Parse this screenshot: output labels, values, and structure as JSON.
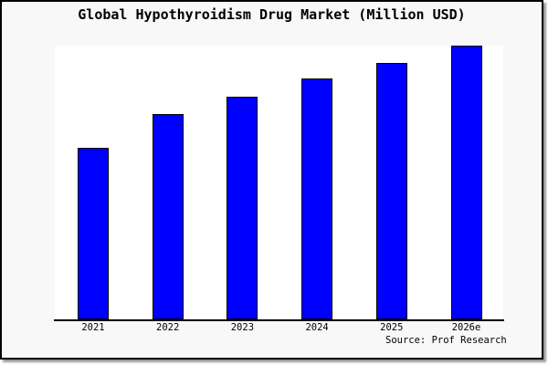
{
  "title": "Global Hypothyroidism Drug Market (Million USD)",
  "chart_data": {
    "type": "bar",
    "title": "Global Hypothyroidism Drug Market (Million USD)",
    "categories": [
      "2021",
      "2022",
      "2023",
      "2024",
      "2025",
      "2026e"
    ],
    "values": [
      62.7,
      75.0,
      81.3,
      87.9,
      93.7,
      100.0
    ],
    "value_note": "No y-axis ticks, labels or gridlines are shown; values are relative bar heights normalized so 2026e = 100",
    "xlabel": "",
    "ylabel": "",
    "ylim": [
      0,
      100
    ],
    "grid": false,
    "legend": false,
    "bar_color": "#0000ff",
    "bar_border_color": "#000000"
  },
  "source_note": "Source: Prof Research",
  "colors": {
    "canvas_bg": "#f8f8f8",
    "plot_bg": "#ffffff",
    "frame_border": "#000000",
    "text": "#000000",
    "shadow": "#9a9a9a",
    "bar": "#0000ff"
  }
}
